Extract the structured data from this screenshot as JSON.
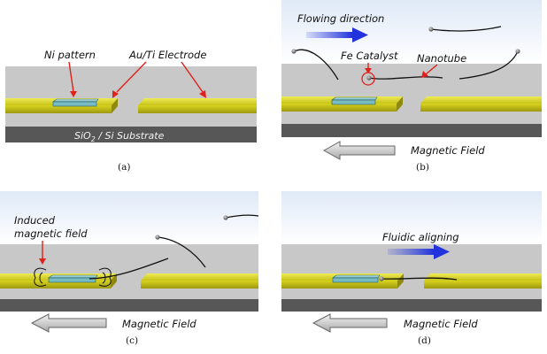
{
  "panels": {
    "a": {
      "caption": "(a)",
      "ni_pattern": "Ni pattern",
      "electrode": "Au/Ti Electrode",
      "substrate_prefix": "SiO",
      "substrate_sub": "2",
      "substrate_suffix": " / Si  Substrate"
    },
    "b": {
      "caption": "(b)",
      "flow_label": "Flowing direction",
      "catalyst": "Fe Catalyst",
      "nanotube": "Nanotube",
      "field": "Magnetic Field"
    },
    "c": {
      "caption": "(c)",
      "induced_line1": "Induced",
      "induced_line2": "magnetic field",
      "field": "Magnetic Field"
    },
    "d": {
      "caption": "(d)",
      "fluidic": "Fluidic aligning",
      "field": "Magnetic Field"
    }
  },
  "colors": {
    "surface": "#c8c8c8",
    "electrode": "#d6d21c",
    "ni_pattern": "#8cc7cf",
    "substrate": "#555555",
    "arrow_red": "#e0201a",
    "flow_blue": "#3344dd",
    "sky_top": "#dfe9f7"
  }
}
